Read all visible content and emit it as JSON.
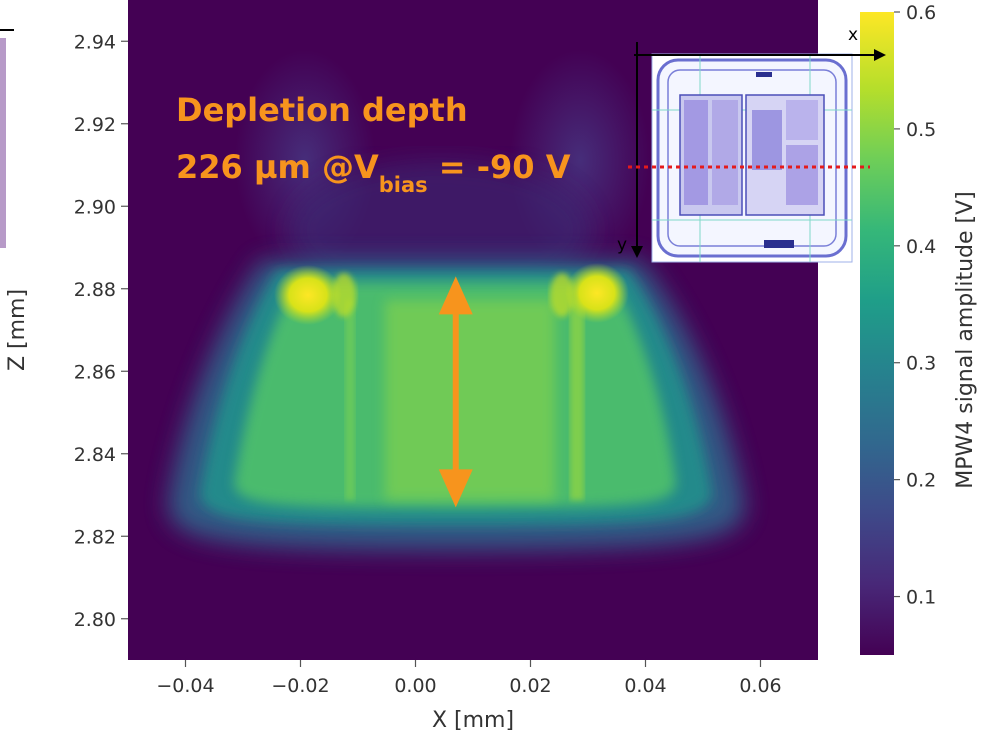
{
  "chart_data": {
    "type": "heatmap",
    "title": "",
    "xlabel": "X [mm]",
    "ylabel": "Z [mm]",
    "colorbar_label": "MPW4 signal amplitude [V]",
    "colormap": "viridis",
    "xlim": [
      -0.05,
      0.07
    ],
    "ylim": [
      2.79,
      2.95
    ],
    "clim": [
      0.05,
      0.6
    ],
    "x_ticks": [
      -0.04,
      -0.02,
      0.0,
      0.02,
      0.04,
      0.06
    ],
    "x_tick_labels": [
      "−0.04",
      "−0.02",
      "0.00",
      "0.02",
      "0.04",
      "0.06"
    ],
    "y_ticks": [
      2.8,
      2.82,
      2.84,
      2.86,
      2.88,
      2.9,
      2.92,
      2.94
    ],
    "y_tick_labels": [
      "2.80",
      "2.82",
      "2.84",
      "2.86",
      "2.88",
      "2.90",
      "2.92",
      "2.94"
    ],
    "colorbar_ticks": [
      0.1,
      0.2,
      0.3,
      0.4,
      0.5,
      0.6
    ],
    "colorbar_tick_labels": [
      "0.1",
      "0.2",
      "0.3",
      "0.4",
      "0.5",
      "0.6"
    ],
    "grid": false,
    "regions": [
      {
        "desc": "depleted region",
        "x_range": [
          -0.035,
          0.05
        ],
        "z_range": [
          2.822,
          2.885
        ],
        "amplitude": 0.38
      },
      {
        "desc": "bright spot left",
        "x": -0.018,
        "z": 2.881,
        "amplitude": 0.6
      },
      {
        "desc": "bright spot right",
        "x": 0.031,
        "z": 2.881,
        "amplitude": 0.6
      },
      {
        "desc": "faint plume left",
        "x": -0.015,
        "z": 2.91,
        "amplitude": 0.12
      },
      {
        "desc": "faint plume right",
        "x": 0.03,
        "z": 2.91,
        "amplitude": 0.12
      }
    ],
    "background_amplitude": 0.05
  },
  "annotation": {
    "line1": "Depletion depth",
    "line2_prefix": "226 µm @V",
    "line2_sub": "bias",
    "line2_suffix": " = -90 V",
    "color": "#f7941d",
    "arrow_x": 0.007,
    "arrow_z": [
      2.827,
      2.883
    ]
  },
  "inset": {
    "x_label": "x",
    "y_label": "y",
    "cut_line_color": "#e41a1c"
  }
}
